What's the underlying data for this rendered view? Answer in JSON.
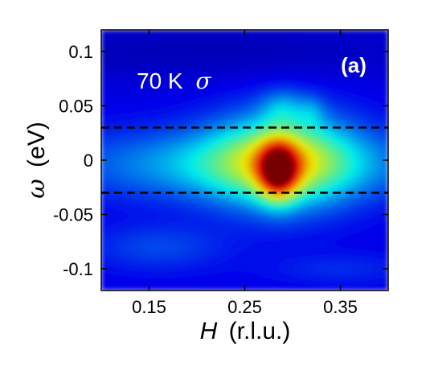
{
  "chart_data": {
    "type": "heatmap",
    "panel_label": "(a)",
    "annotation": {
      "text": "70 K",
      "symbol": "σ"
    },
    "xlabel": {
      "var": "H",
      "unit": "(r.l.u.)"
    },
    "ylabel": {
      "var": "ω",
      "unit": "(eV)"
    },
    "xlim": [
      0.1,
      0.4
    ],
    "ylim": [
      -0.12,
      0.12
    ],
    "xticks": [
      {
        "value": 0.15,
        "label": "0.15"
      },
      {
        "value": 0.25,
        "label": "0.25"
      },
      {
        "value": 0.35,
        "label": "0.35"
      }
    ],
    "yticks": [
      {
        "value": 0.1,
        "label": "0.1"
      },
      {
        "value": 0.05,
        "label": "0.05"
      },
      {
        "value": 0,
        "label": "0"
      },
      {
        "value": -0.05,
        "label": "-0.05"
      },
      {
        "value": -0.1,
        "label": "-0.1"
      }
    ],
    "dashed_lines_y": [
      0.03,
      -0.03
    ],
    "colormap": "jet",
    "colors": {
      "background": "#0a1fb8",
      "peak": "#e41a00"
    },
    "intensity_features": [
      {
        "name": "main peak",
        "H": 0.285,
        "omega": -0.01,
        "intensity": 1.0
      },
      {
        "name": "quasi-elastic band",
        "H_range": [
          0.1,
          0.4
        ],
        "omega": 0.0,
        "intensity": 0.3
      },
      {
        "name": "upper ridge",
        "H": 0.29,
        "omega": 0.05,
        "intensity": 0.25
      }
    ]
  }
}
